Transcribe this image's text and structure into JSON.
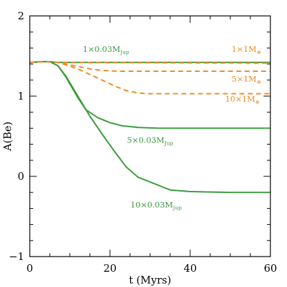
{
  "chart_data": {
    "type": "line",
    "xlabel": "t (Myrs)",
    "ylabel": "A(Be)",
    "xlim": [
      0,
      60
    ],
    "ylim": [
      -1,
      2
    ],
    "x_ticks": [
      "0",
      "20",
      "40",
      "60"
    ],
    "y_ticks": [
      "−1",
      "0",
      "1",
      "2"
    ],
    "grid": false,
    "colors": {
      "planet": "#3a9a3a",
      "earth": "#f08a1e"
    },
    "series": [
      {
        "label_main": "1×0.03M",
        "label_sub": "Jup",
        "label_suffix": "",
        "style": "solid",
        "color_key": "planet",
        "label_x": 19,
        "label_y": 1.55,
        "x": [
          0,
          3,
          5,
          7,
          60
        ],
        "y": [
          1.42,
          1.43,
          1.43,
          1.42,
          1.42
        ]
      },
      {
        "label_main": "5×0.03M",
        "label_sub": "Jup",
        "label_suffix": "",
        "style": "solid",
        "color_key": "planet",
        "label_x": 30,
        "label_y": 0.42,
        "x": [
          0,
          3,
          5,
          7,
          9,
          12,
          14,
          17,
          20,
          23,
          27,
          32,
          40,
          50,
          60
        ],
        "y": [
          1.42,
          1.43,
          1.43,
          1.38,
          1.24,
          0.98,
          0.83,
          0.73,
          0.67,
          0.63,
          0.61,
          0.6,
          0.6,
          0.6,
          0.6
        ]
      },
      {
        "label_main": "10×0.03M",
        "label_sub": "Jup",
        "label_suffix": "",
        "style": "solid",
        "color_key": "planet",
        "label_x": 31.5,
        "label_y": -0.39,
        "x": [
          0,
          3,
          5,
          7,
          9,
          12,
          15,
          18,
          21,
          24,
          27,
          31,
          35,
          40,
          50,
          60
        ],
        "y": [
          1.42,
          1.43,
          1.43,
          1.38,
          1.25,
          1.0,
          0.75,
          0.53,
          0.32,
          0.12,
          -0.01,
          -0.09,
          -0.17,
          -0.19,
          -0.2,
          -0.2
        ]
      },
      {
        "label_main": "1×1M",
        "label_sub": "⊕",
        "label_suffix": "",
        "style": "dashed",
        "color_key": "earth",
        "label_x": 54,
        "label_y": 1.55,
        "x": [
          0,
          3,
          5,
          7,
          60
        ],
        "y": [
          1.42,
          1.43,
          1.43,
          1.42,
          1.41
        ]
      },
      {
        "label_main": "5×1M",
        "label_sub": "⊕",
        "label_suffix": "",
        "style": "dashed",
        "color_key": "earth",
        "label_x": 54,
        "label_y": 1.18,
        "x": [
          0,
          3,
          5,
          7,
          9,
          12,
          15,
          18,
          22,
          26,
          30,
          40,
          60
        ],
        "y": [
          1.42,
          1.43,
          1.43,
          1.42,
          1.4,
          1.37,
          1.34,
          1.32,
          1.31,
          1.31,
          1.31,
          1.31,
          1.31
        ]
      },
      {
        "label_main": "10×1M",
        "label_sub": "⊕",
        "label_suffix": "",
        "style": "dashed",
        "color_key": "earth",
        "label_x": 53,
        "label_y": 0.93,
        "x": [
          0,
          3,
          5,
          7,
          9,
          12,
          15,
          18,
          21,
          24,
          27,
          30,
          40,
          60
        ],
        "y": [
          1.42,
          1.43,
          1.43,
          1.42,
          1.39,
          1.34,
          1.27,
          1.2,
          1.13,
          1.07,
          1.04,
          1.03,
          1.03,
          1.03
        ]
      }
    ]
  }
}
